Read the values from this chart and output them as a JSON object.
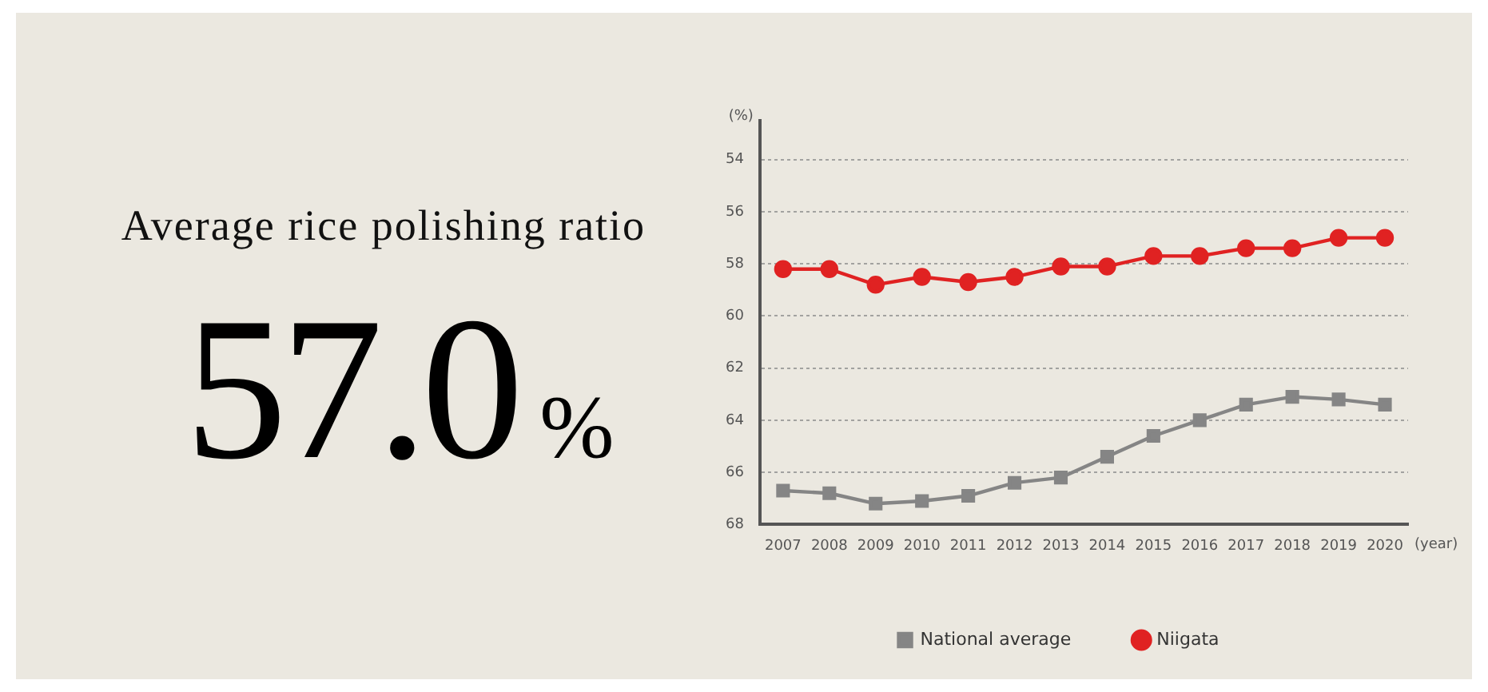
{
  "chart_data": {
    "type": "line",
    "title": "Average rice polishing ratio",
    "annotations": [
      "57.0%"
    ],
    "xlabel": "(year)",
    "ylabel": "(%)",
    "categories": [
      "2007",
      "2008",
      "2009",
      "2010",
      "2011",
      "2012",
      "2013",
      "2014",
      "2015",
      "2016",
      "2017",
      "2018",
      "2019",
      "2020"
    ],
    "series": [
      {
        "name": "National average",
        "color": "#858585",
        "marker": "square",
        "values": [
          66.7,
          66.8,
          67.2,
          67.1,
          66.9,
          66.4,
          66.2,
          65.4,
          64.6,
          64.0,
          63.4,
          63.1,
          63.2,
          63.4
        ]
      },
      {
        "name": "Niigata",
        "color": "#e02222",
        "marker": "circle",
        "values": [
          58.2,
          58.2,
          58.8,
          58.5,
          58.7,
          58.5,
          58.1,
          58.1,
          57.7,
          57.7,
          57.4,
          57.4,
          57.0,
          57.0
        ]
      }
    ],
    "ylim": [
      68,
      52.5
    ],
    "yticks": [
      54,
      56,
      58,
      60,
      62,
      64,
      66,
      68
    ],
    "grid": "y",
    "legend": "bottom",
    "line_style": "solid"
  }
}
